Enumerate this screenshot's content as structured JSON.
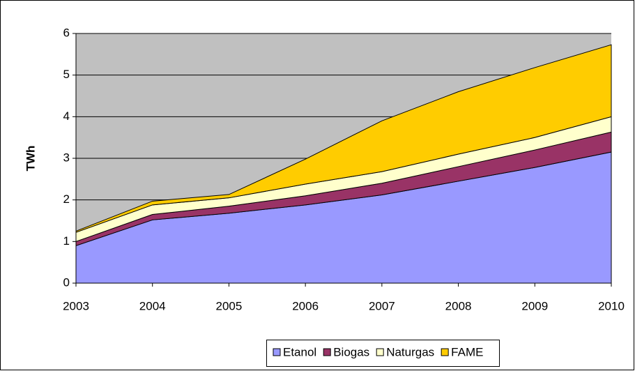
{
  "chart_data": {
    "type": "stacked_area",
    "y_label": "TWh",
    "categories": [
      "2003",
      "2004",
      "2005",
      "2006",
      "2007",
      "2008",
      "2009",
      "2010"
    ],
    "series": [
      {
        "name": "Etanol",
        "color": "#9999ff",
        "values": [
          0.9,
          1.52,
          1.68,
          1.88,
          2.12,
          2.45,
          2.78,
          3.15
        ]
      },
      {
        "name": "Biogas",
        "color": "#993366",
        "values": [
          0.1,
          0.13,
          0.17,
          0.22,
          0.28,
          0.35,
          0.42,
          0.48
        ]
      },
      {
        "name": "Naturgas",
        "color": "#ffffcc",
        "values": [
          0.22,
          0.23,
          0.2,
          0.28,
          0.28,
          0.3,
          0.3,
          0.37
        ]
      },
      {
        "name": "FAME",
        "color": "#ffcc00",
        "values": [
          0.03,
          0.09,
          0.08,
          0.6,
          1.22,
          1.5,
          1.68,
          1.73
        ]
      }
    ],
    "ylim": [
      0,
      6
    ],
    "yticks": [
      0,
      1,
      2,
      3,
      4,
      5,
      6
    ],
    "grid": true,
    "legend": "bottom",
    "plot_background": "#c0c0c0"
  }
}
